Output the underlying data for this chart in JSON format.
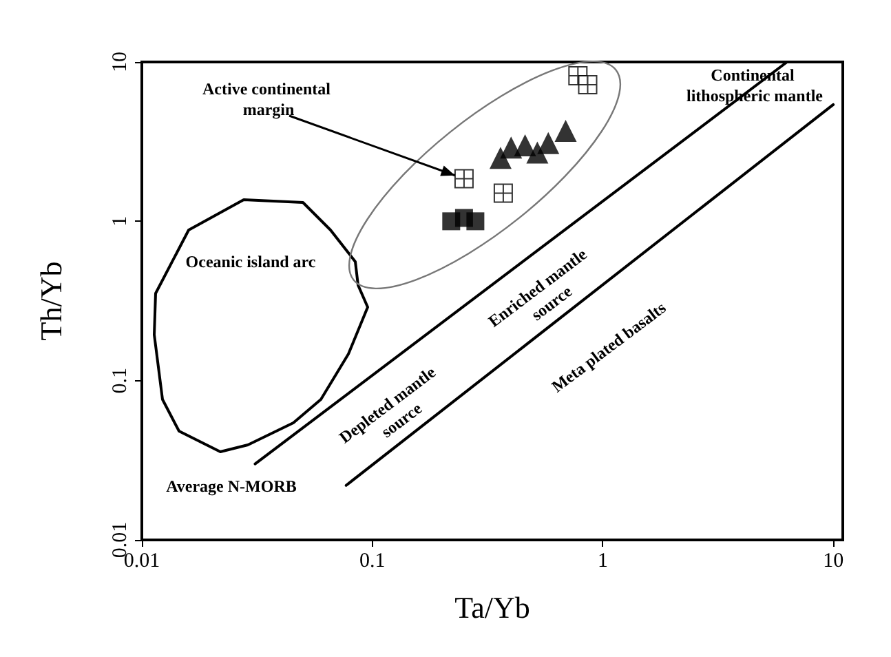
{
  "chart_data": {
    "type": "scatter",
    "xlabel": "Ta/Yb",
    "ylabel": "Th/Yb",
    "log": "xy",
    "grid": false,
    "xlim": [
      0.01,
      11
    ],
    "ylim": [
      0.01,
      10
    ],
    "xticks": [
      0.01,
      0.1,
      1,
      10
    ],
    "yticks": [
      0.01,
      0.1,
      1,
      10
    ],
    "series": [
      {
        "type": "line",
        "color": "#000000",
        "line_style": "solid",
        "marker": "none",
        "x": [
          0.031,
          6.3
        ],
        "values": [
          0.03,
          10
        ]
      },
      {
        "type": "line",
        "color": "#000000",
        "line_style": "solid",
        "marker": "none",
        "x": [
          0.077,
          10
        ],
        "values": [
          0.022,
          5.4
        ]
      },
      {
        "type": "scatter",
        "color": "#000000",
        "marker": "square",
        "x": [
          0.22,
          0.25,
          0.28
        ],
        "values": [
          1.0,
          1.05,
          1.0
        ]
      },
      {
        "type": "scatter",
        "color": "#000000",
        "marker": "cross",
        "x": [
          0.25,
          0.37,
          0.78,
          0.86
        ],
        "values": [
          1.85,
          1.5,
          8.2,
          7.2
        ]
      },
      {
        "type": "scatter",
        "color": "#000000",
        "marker": "triangle",
        "x": [
          0.36,
          0.4,
          0.46,
          0.52,
          0.58,
          0.69
        ],
        "values": [
          2.5,
          2.9,
          3.0,
          2.7,
          3.1,
          3.7
        ]
      }
    ],
    "annotations": [
      {
        "text": "Active continental margin",
        "x": 0.25,
        "y": 1.85
      },
      "Continental lithospheric mantle",
      "Oceanic island arc",
      "Average N-MORB",
      "Depleted mantle source",
      "Enriched mantle source",
      "Meta plated basalts"
    ]
  }
}
